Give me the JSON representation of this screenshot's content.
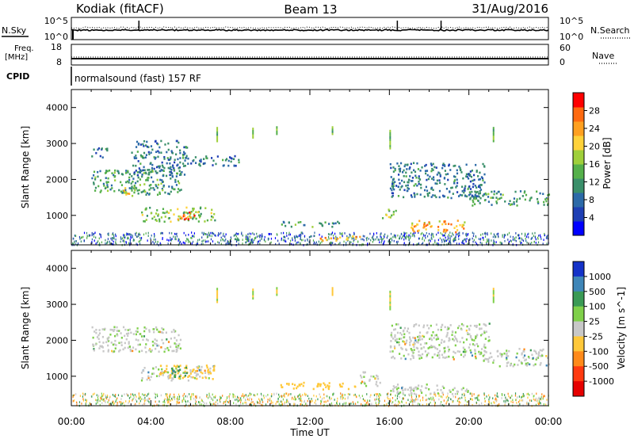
{
  "header": {
    "station": "Kodiak (fitACF)",
    "beam": "Beam 13",
    "date": "31/Aug/2016"
  },
  "strip": {
    "nsky_label": "N.Sky",
    "nsky_ticks": [
      "10^5",
      "10^0"
    ],
    "nsearch_label": "N.Search",
    "nsearch_ticks": [
      "10^5",
      "10^0"
    ],
    "freq_label": "Freq.",
    "freq_unit": "[MHz]",
    "freq_ticks": [
      "18",
      "8"
    ],
    "nave_label": "Nave",
    "nave_ticks": [
      "60",
      "0"
    ],
    "cpid_label": "CPID",
    "cpid_value": "normalsound (fast) 157 RF"
  },
  "chart_data": [
    {
      "type": "heatmap",
      "parameter": "power",
      "ylabel": "Slant Range [km]",
      "xlabel": "Time UT",
      "xlim": [
        "00:00",
        "24:00"
      ],
      "ylim": [
        180,
        4500
      ],
      "yticks": [
        "4000",
        "3000",
        "2000",
        "1000"
      ],
      "colorbar": {
        "label": "Power [dB]",
        "ticks": [
          "28",
          "24",
          "20",
          "16",
          "12",
          "8",
          "4"
        ],
        "colors": [
          "#0000ff",
          "#1e3fb4",
          "#2c6aa8",
          "#3a8f6a",
          "#55b04a",
          "#9fcf3a",
          "#ffd23a",
          "#ffa020",
          "#ff6a10",
          "#ff0000"
        ]
      },
      "features": [
        {
          "t_start": 1.0,
          "t_end": 1.8,
          "range_km": [
            2600,
            2900
          ],
          "power_db": 8
        },
        {
          "t_start": 1.0,
          "t_end": 5.5,
          "range_km": [
            1600,
            2300
          ],
          "power_db": 12
        },
        {
          "t_start": 2.6,
          "t_end": 3.2,
          "range_km": [
            1550,
            1800
          ],
          "power_db": 20
        },
        {
          "t_start": 3.0,
          "t_end": 5.8,
          "range_km": [
            2100,
            3100
          ],
          "power_db": 8
        },
        {
          "t_start": 3.5,
          "t_end": 7.2,
          "range_km": [
            850,
            1250
          ],
          "power_db": 16
        },
        {
          "t_start": 5.2,
          "t_end": 6.2,
          "range_km": [
            900,
            1150
          ],
          "power_db": 28
        },
        {
          "t_start": 5.8,
          "t_end": 8.4,
          "range_km": [
            2400,
            2700
          ],
          "power_db": 8
        },
        {
          "t_start": 8.2,
          "t_end": 9.2,
          "range_km": [
            300,
            400
          ],
          "power_db": 12
        },
        {
          "t_start": 10.5,
          "t_end": 13.5,
          "range_km": [
            700,
            850
          ],
          "power_db": 12
        },
        {
          "t_start": 12.5,
          "t_end": 15.0,
          "range_km": [
            320,
            450
          ],
          "power_db": 24
        },
        {
          "t_start": 15.6,
          "t_end": 16.4,
          "range_km": [
            950,
            1200
          ],
          "power_db": 16
        },
        {
          "t_start": 16.0,
          "t_end": 20.8,
          "range_km": [
            1500,
            2500
          ],
          "power_db": 8
        },
        {
          "t_start": 17.0,
          "t_end": 19.8,
          "range_km": [
            550,
            900
          ],
          "power_db": 24
        },
        {
          "t_start": 20.0,
          "t_end": 24.0,
          "range_km": [
            1300,
            1700
          ],
          "power_db": 12
        }
      ]
    },
    {
      "type": "heatmap",
      "parameter": "velocity",
      "ylabel": "Slant Range [km]",
      "xlabel": "Time UT",
      "xlim": [
        "00:00",
        "24:00"
      ],
      "ylim": [
        180,
        4500
      ],
      "xticks": [
        "00:00",
        "04:00",
        "08:00",
        "12:00",
        "16:00",
        "20:00",
        "00:00"
      ],
      "yticks": [
        "4000",
        "3000",
        "2000",
        "1000"
      ],
      "colorbar": {
        "label": "Velocity [m s^-1]",
        "ticks": [
          "1000",
          "500",
          "100",
          "25",
          "-25",
          "-100",
          "-500",
          "-1000"
        ],
        "colors": [
          "#1432c8",
          "#3f86b8",
          "#3a9a55",
          "#7fd04a",
          "#c8c8c8",
          "#ffc83a",
          "#ff8a1a",
          "#ff3a10",
          "#e60000"
        ]
      },
      "features": [
        {
          "t_start": 1.0,
          "t_end": 5.5,
          "range_km": [
            1700,
            2400
          ],
          "velocity_ms": 0
        },
        {
          "t_start": 3.5,
          "t_end": 7.0,
          "range_km": [
            900,
            1300
          ],
          "velocity_ms": 0
        },
        {
          "t_start": 4.4,
          "t_end": 7.2,
          "range_km": [
            950,
            1350
          ],
          "velocity_ms": -100
        },
        {
          "t_start": 5.0,
          "t_end": 5.8,
          "range_km": [
            1000,
            1300
          ],
          "velocity_ms": 100
        },
        {
          "t_start": 10.5,
          "t_end": 14.5,
          "range_km": [
            650,
            850
          ],
          "velocity_ms": -100
        },
        {
          "t_start": 14.5,
          "t_end": 15.5,
          "range_km": [
            700,
            1150
          ],
          "velocity_ms": 0
        },
        {
          "t_start": 16.0,
          "t_end": 20.0,
          "range_km": [
            500,
            800
          ],
          "velocity_ms": 0
        },
        {
          "t_start": 16.0,
          "t_end": 21.0,
          "range_km": [
            1500,
            2500
          ],
          "velocity_ms": 0
        },
        {
          "t_start": 20.5,
          "t_end": 24.0,
          "range_km": [
            1300,
            1800
          ],
          "velocity_ms": 0
        }
      ]
    }
  ]
}
